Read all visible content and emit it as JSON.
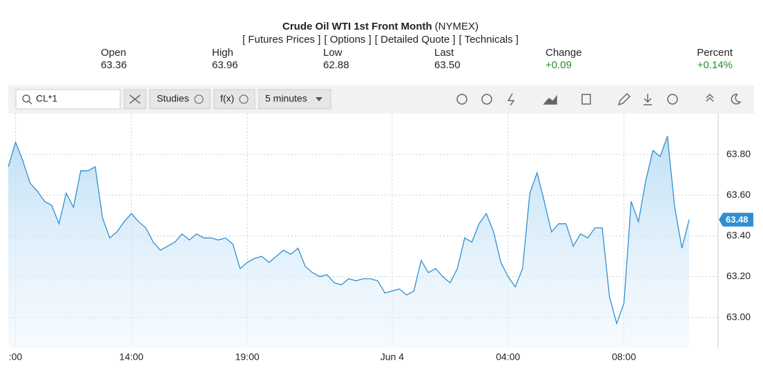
{
  "header": {
    "title": "Crude Oil WTI 1st Front Month",
    "exchange": "(NYMEX)",
    "links": [
      "[ Futures Prices ]",
      "[ Options ]",
      "[ Detailed Quote ]",
      "[ Technicals ]"
    ]
  },
  "quote": {
    "labels": [
      "Open",
      "High",
      "Low",
      "Last",
      "Change",
      "Percent"
    ],
    "values": [
      "63.36",
      "63.96",
      "62.88",
      "63.50",
      "+0.09",
      "+0.14%"
    ]
  },
  "toolbar": {
    "symbol": "CL*1",
    "studies": "Studies",
    "fx": "f(x)",
    "interval": "5 minutes"
  },
  "chart_data": {
    "type": "area",
    "color": "#2f8fd0",
    "grid": true,
    "x": [
      9.75,
      10,
      10.25,
      10.5,
      10.75,
      11,
      11.25,
      11.5,
      11.75,
      12,
      12.25,
      12.5,
      12.75,
      13,
      13.25,
      13.5,
      13.75,
      14,
      14.25,
      14.5,
      14.75,
      15,
      15.25,
      15.5,
      15.75,
      16,
      16.25,
      16.5,
      16.75,
      18,
      18.25,
      18.5,
      18.75,
      19,
      19.25,
      19.5,
      19.75,
      20,
      20.25,
      20.5,
      20.75,
      21,
      21.25,
      21.5,
      21.75,
      22,
      22.25,
      22.5,
      22.75,
      23,
      23.25,
      23.5,
      23.75,
      24,
      24.25,
      24.5,
      24.75,
      25,
      25.25,
      25.5,
      25.75,
      26,
      26.25,
      26.5,
      26.75,
      27,
      27.25,
      27.5,
      27.75,
      28,
      28.25,
      28.5,
      28.75,
      29,
      29.25,
      29.5,
      29.75,
      30,
      30.25,
      30.5,
      30.75,
      31,
      31.25,
      31.5,
      31.75,
      32,
      32.25,
      32.5,
      32.75,
      33,
      33.25,
      33.5,
      33.75,
      34,
      34.25
    ],
    "values": [
      63.74,
      63.86,
      63.77,
      63.66,
      63.62,
      63.57,
      63.55,
      63.46,
      63.61,
      63.54,
      63.72,
      63.72,
      63.74,
      63.49,
      63.39,
      63.42,
      63.47,
      63.51,
      63.47,
      63.44,
      63.37,
      63.33,
      63.35,
      63.37,
      63.41,
      63.38,
      63.41,
      63.39,
      63.39,
      63.38,
      63.39,
      63.36,
      63.24,
      63.27,
      63.29,
      63.3,
      63.27,
      63.3,
      63.33,
      63.31,
      63.34,
      63.25,
      63.22,
      63.2,
      63.21,
      63.17,
      63.16,
      63.19,
      63.18,
      63.19,
      63.19,
      63.18,
      63.12,
      63.13,
      63.14,
      63.11,
      63.13,
      63.28,
      63.22,
      63.24,
      63.2,
      63.17,
      63.24,
      63.39,
      63.37,
      63.46,
      63.51,
      63.42,
      63.27,
      63.2,
      63.15,
      63.24,
      63.61,
      63.71,
      63.57,
      63.42,
      63.46,
      63.46,
      63.35,
      63.41,
      63.39,
      63.44,
      63.44,
      63.1,
      62.97,
      63.07,
      63.57,
      63.47,
      63.67,
      63.82,
      63.79,
      63.89,
      63.54,
      63.34,
      63.48
    ],
    "session_break": [
      17,
      18
    ],
    "xlim": [
      9.75,
      35.25
    ],
    "xticks": [
      {
        "value": 10,
        "label": ":00"
      },
      {
        "value": 14,
        "label": "14:00"
      },
      {
        "value": 19,
        "label": "19:00"
      },
      {
        "value": 24,
        "label": "Jun 4"
      },
      {
        "value": 28,
        "label": "04:00"
      },
      {
        "value": 32,
        "label": "08:00"
      }
    ],
    "ylim": [
      62.85,
      64.0
    ],
    "yticks": [
      {
        "value": 63.0,
        "label": "63.00"
      },
      {
        "value": 63.2,
        "label": "63.20"
      },
      {
        "value": 63.4,
        "label": "63.40"
      },
      {
        "value": 63.6,
        "label": "63.60"
      },
      {
        "value": 63.8,
        "label": "63.80"
      }
    ]
  }
}
